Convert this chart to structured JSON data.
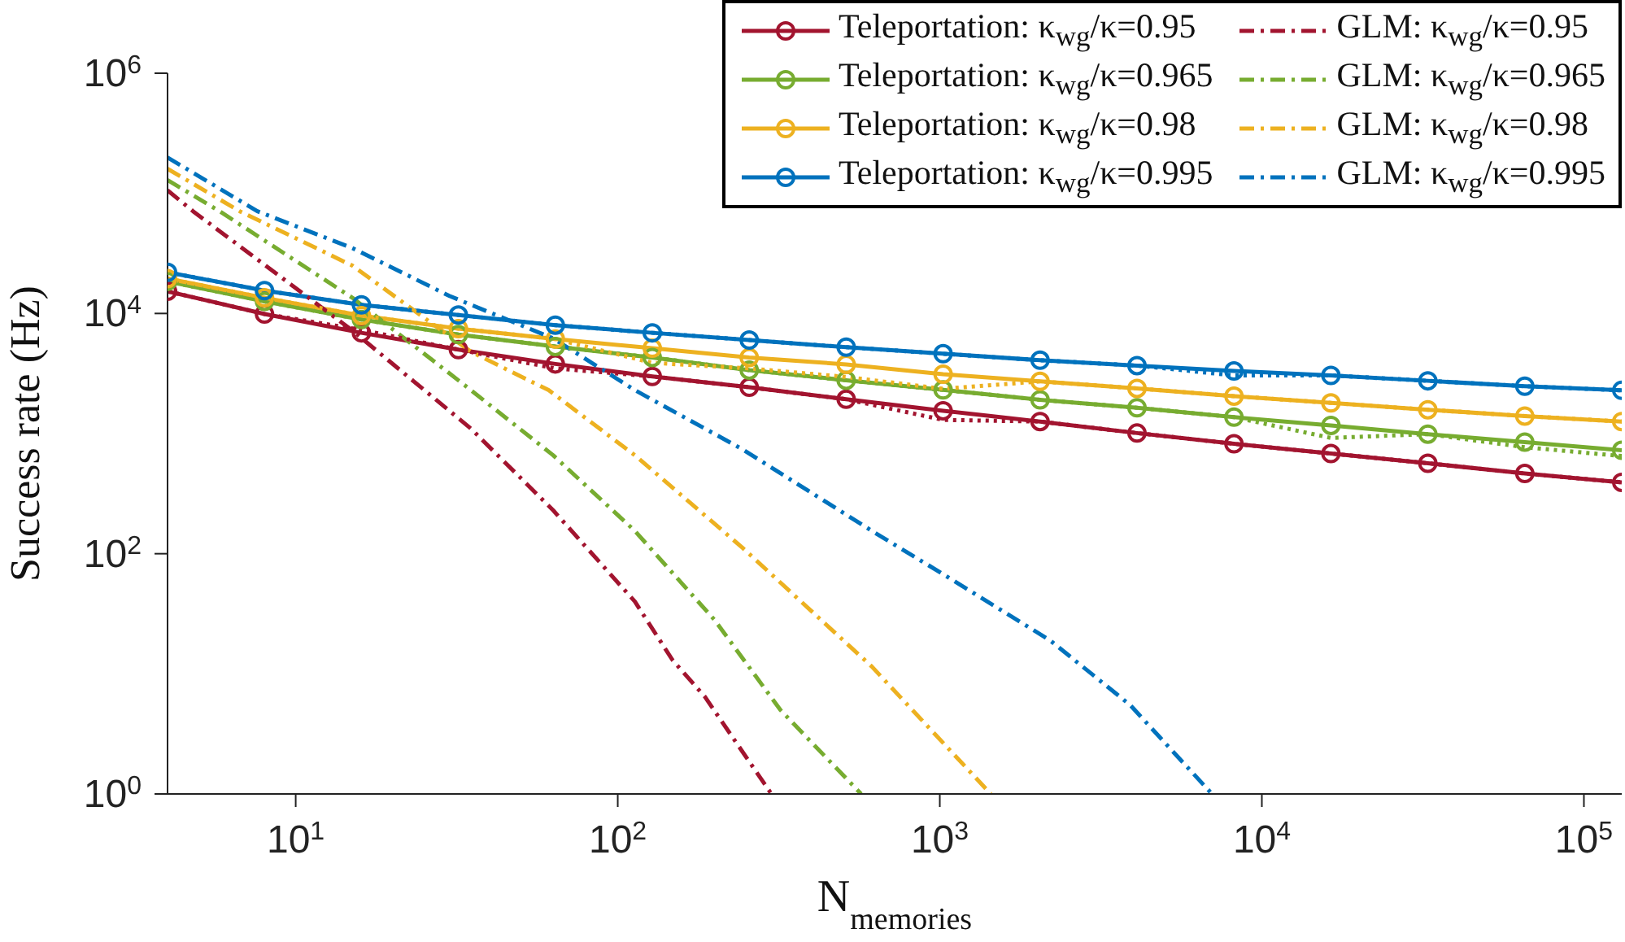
{
  "chart_data": {
    "type": "line",
    "xlabel": "N$_{memories}$",
    "ylabel": "Success rate (Hz)",
    "log": "xy",
    "grid": false,
    "legend": "top right",
    "xlim": [
      4,
      131072
    ],
    "ylim": [
      1,
      1000000
    ],
    "xticks": [
      {
        "value": 10,
        "label": "10$^{1}$"
      },
      {
        "value": 100,
        "label": "10$^{2}$"
      },
      {
        "value": 1000,
        "label": "10$^{3}$"
      },
      {
        "value": 10000,
        "label": "10$^{4}$"
      },
      {
        "value": 100000,
        "label": "10$^{5}$"
      }
    ],
    "yticks": [
      {
        "value": 1,
        "label": "10$^{0}$"
      },
      {
        "value": 100,
        "label": "10$^{2}$"
      },
      {
        "value": 10000,
        "label": "10$^{4}$"
      },
      {
        "value": 1000000,
        "label": "10$^{6}$"
      }
    ],
    "x": [
      4,
      8,
      16,
      32,
      64,
      128,
      256,
      512,
      1024,
      2048,
      4096,
      8192,
      16384,
      32768,
      65536,
      131072
    ],
    "series": [
      {
        "name": "Teleportation: κ$_{wg}$/κ=0.95",
        "color": "#a2142f",
        "line_style": "solid",
        "marker": "circle",
        "values": [
          15300,
          9900,
          6900,
          5000,
          3800,
          2990,
          2430,
          1930,
          1550,
          1260,
          1010,
          822,
          682,
          566,
          465,
          393
        ]
      },
      {
        "name": "Teleportation: κ$_{wg}$/κ=0.965",
        "color": "#77ac30",
        "line_style": "solid",
        "marker": "circle",
        "values": [
          18500,
          12600,
          8900,
          6670,
          5310,
          4300,
          3380,
          2780,
          2310,
          1910,
          1640,
          1370,
          1170,
          990,
          850,
          726
        ]
      },
      {
        "name": "Teleportation: κ$_{wg}$/κ=0.98",
        "color": "#edb120",
        "line_style": "solid",
        "marker": "circle",
        "values": [
          19500,
          13500,
          9600,
          7480,
          6130,
          5140,
          4300,
          3770,
          3120,
          2720,
          2380,
          2050,
          1800,
          1580,
          1400,
          1260
        ]
      },
      {
        "name": "Teleportation: κ$_{wg}$/κ=0.995",
        "color": "#0072bd",
        "line_style": "solid",
        "marker": "circle",
        "values": [
          22000,
          15500,
          11800,
          9700,
          8000,
          6900,
          6000,
          5240,
          4620,
          4080,
          3680,
          3320,
          3050,
          2750,
          2480,
          2290
        ]
      },
      {
        "name": "GLM: κ$_{wg}$/κ=0.95",
        "color": "#a2142f",
        "line_style": "dashed",
        "marker": "none",
        "x": [
          4,
          4.8,
          15,
          35,
          63,
          113,
          148,
          186,
          300
        ],
        "values": [
          106000,
          71000,
          7200,
          1100,
          230,
          40,
          13,
          6.5,
          1
        ]
      },
      {
        "name": "GLM: κ$_{wg}$/κ=0.965",
        "color": "#77ac30",
        "line_style": "dashed",
        "marker": "none",
        "x": [
          4,
          5.8,
          15,
          35,
          63,
          113,
          200,
          320,
          570
        ],
        "values": [
          129000,
          71000,
          13500,
          2300,
          660,
          155,
          28,
          5,
          1
        ]
      },
      {
        "name": "GLM: κ$_{wg}$/κ=0.98",
        "color": "#edb120",
        "line_style": "dashed",
        "marker": "none",
        "x": [
          4,
          6.7,
          15,
          35,
          61,
          113,
          244,
          615,
          1440
        ],
        "values": [
          160000,
          71000,
          25000,
          4800,
          2300,
          660,
          112,
          11.5,
          1
        ]
      },
      {
        "name": "GLM: κ$_{wg}$/κ=0.995",
        "color": "#0072bd",
        "line_style": "dashed",
        "marker": "none",
        "x": [
          4,
          7.6,
          15,
          30,
          63,
          113,
          244,
          615,
          1020,
          2200,
          3900,
          7000
        ],
        "values": [
          199000,
          71000,
          35000,
          14000,
          6200,
          2300,
          740,
          155,
          68,
          19,
          5.5,
          1
        ]
      },
      {
        "color": "#a2142f",
        "line_style": "dotted",
        "marker": "none",
        "values": [
          15300,
          9900,
          7300,
          5000,
          3490,
          2990,
          2430,
          1930,
          1300,
          1260,
          1010,
          822,
          682,
          566,
          465,
          393
        ]
      },
      {
        "color": "#77ac30",
        "line_style": "dotted",
        "marker": "none",
        "values": [
          18500,
          12600,
          8900,
          6670,
          5310,
          4300,
          3380,
          2780,
          2310,
          1910,
          1640,
          1370,
          920,
          990,
          770,
          650
        ]
      },
      {
        "color": "#edb120",
        "line_style": "dotted",
        "marker": "none",
        "values": [
          19500,
          13500,
          9600,
          7480,
          6130,
          3880,
          3490,
          2960,
          2360,
          2720,
          2380,
          2050,
          1800,
          1580,
          1400,
          1260
        ]
      },
      {
        "color": "#0072bd",
        "line_style": "dotted",
        "marker": "none",
        "values": [
          22000,
          15500,
          11800,
          9700,
          8000,
          6900,
          6000,
          5240,
          4620,
          4080,
          3680,
          3050,
          3050,
          2750,
          2480,
          2290
        ]
      }
    ]
  }
}
